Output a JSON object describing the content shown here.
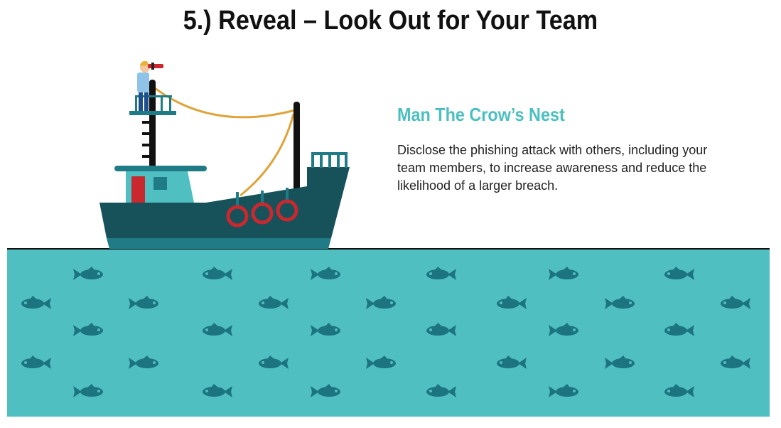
{
  "title": "5.) Reveal – Look Out for Your Team",
  "section": {
    "heading": "Man The Crow’s Nest",
    "body": "Disclose the phishing attack with others, including your team members, to increase awareness and reduce the likelihood of a larger breach."
  },
  "colors": {
    "water": "#4fbfc2",
    "boat_hull": "#17515a",
    "boat_stripe": "#1f7c86",
    "cabin": "#4fbfc2",
    "door": "#c8282e",
    "life_ring": "#c8282e",
    "rope": "#e0a33a",
    "fish": "#1c7480",
    "heading_accent": "#4bbfbf"
  },
  "icons": [
    "fishing-boat-icon",
    "lookout-person-icon",
    "binoculars-icon",
    "life-ring-icon",
    "fish-icon"
  ]
}
